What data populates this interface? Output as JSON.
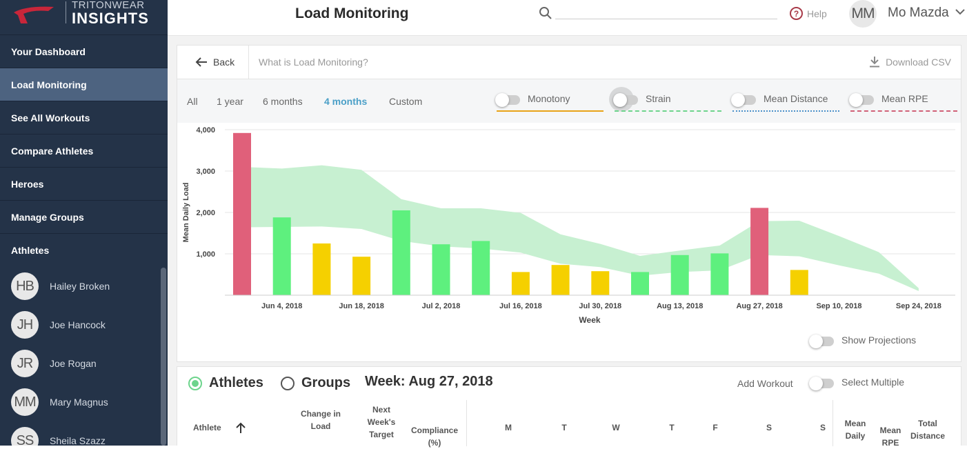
{
  "brand": {
    "top": "TRITONWEAR",
    "bottom": "INSIGHTS"
  },
  "sidebar": {
    "items": [
      {
        "label": "Your Dashboard"
      },
      {
        "label": "Load Monitoring"
      },
      {
        "label": "See All Workouts"
      },
      {
        "label": "Compare Athletes"
      },
      {
        "label": "Heroes"
      },
      {
        "label": "Manage Groups"
      }
    ],
    "athletes_heading": "Athletes",
    "athletes": [
      {
        "initials": "HB",
        "name": "Hailey Broken"
      },
      {
        "initials": "JH",
        "name": "Joe Hancock"
      },
      {
        "initials": "JR",
        "name": "Joe Rogan"
      },
      {
        "initials": "MM",
        "name": "Mary Magnus"
      },
      {
        "initials": "SS",
        "name": "Sheila Szazz"
      }
    ]
  },
  "header": {
    "title": "Load Monitoring",
    "help": "Help",
    "user_initials": "MM",
    "user_name": "Mo Mazda"
  },
  "toolbar": {
    "back": "Back",
    "whatis": "What is Load Monitoring?",
    "download": "Download CSV"
  },
  "ranges": [
    "All",
    "1 year",
    "6 months",
    "4 months",
    "Custom"
  ],
  "active_range": "4 months",
  "toggles": [
    {
      "label": "Monotony",
      "color": "#e8a317"
    },
    {
      "label": "Strain",
      "color": "#6dd48c"
    },
    {
      "label": "Mean Distance",
      "color": "#4a90c9"
    },
    {
      "label": "Mean RPE",
      "color": "#d06077"
    }
  ],
  "show_projections": "Show Projections",
  "chart_data": {
    "type": "bar",
    "xlabel": "Week",
    "ylabel": "Mean Daily Load",
    "ylim": [
      0,
      4000
    ],
    "yticks": [
      "1,000",
      "2,000",
      "3,000",
      "4,000"
    ],
    "xticks": [
      "Jun 4, 2018",
      "Jun 18, 2018",
      "Jul 2, 2018",
      "Jul 16, 2018",
      "Jul 30, 2018",
      "Aug 13, 2018",
      "Aug 27, 2018",
      "Sep 10, 2018",
      "Sep 24, 2018"
    ],
    "weeks": [
      "May 28, 2018",
      "Jun 4, 2018",
      "Jun 11, 2018",
      "Jun 18, 2018",
      "Jun 25, 2018",
      "Jul 2, 2018",
      "Jul 9, 2018",
      "Jul 16, 2018",
      "Jul 23, 2018",
      "Jul 30, 2018",
      "Aug 6, 2018",
      "Aug 13, 2018",
      "Aug 20, 2018",
      "Aug 27, 2018",
      "Sep 3, 2018"
    ],
    "values": [
      3920,
      1880,
      1250,
      930,
      2050,
      1230,
      1310,
      560,
      730,
      580,
      560,
      970,
      1010,
      2110,
      610
    ],
    "bar_colors": [
      "#e0607a",
      "#5ef07e",
      "#f5d000",
      "#f5d000",
      "#5ef07e",
      "#5ef07e",
      "#5ef07e",
      "#f5d000",
      "#f5d000",
      "#f5d000",
      "#5ef07e",
      "#5ef07e",
      "#5ef07e",
      "#e0607a",
      "#f5d000"
    ],
    "band": {
      "color": "#c7f0d1",
      "weeks": [
        0,
        1,
        2,
        3,
        4,
        5,
        6,
        7,
        8,
        9,
        10,
        11,
        12,
        13,
        14,
        15,
        16,
        17
      ],
      "upper": [
        3100,
        3060,
        3140,
        3030,
        2320,
        2100,
        2100,
        1990,
        1470,
        1240,
        950,
        1080,
        1200,
        1790,
        1800,
        1430,
        1040,
        170
      ],
      "lower": [
        1640,
        1650,
        1660,
        1600,
        1310,
        1180,
        1130,
        1030,
        760,
        680,
        470,
        560,
        600,
        970,
        940,
        720,
        520,
        100
      ]
    }
  },
  "bottom": {
    "athletes": "Athletes",
    "groups": "Groups",
    "week": "Week: Aug 27, 2018",
    "add_workout": "Add Workout",
    "select_multiple": "Select Multiple",
    "columns": {
      "athlete": "Athlete",
      "change": "Change in Load",
      "next": "Next Week's Target",
      "compliance": "Compliance (%)",
      "days": [
        "M",
        "T",
        "W",
        "T",
        "F",
        "S",
        "S"
      ],
      "mean_daily": "Mean Daily",
      "mean_rpe": "Mean RPE",
      "total_distance": "Total Distance"
    }
  }
}
